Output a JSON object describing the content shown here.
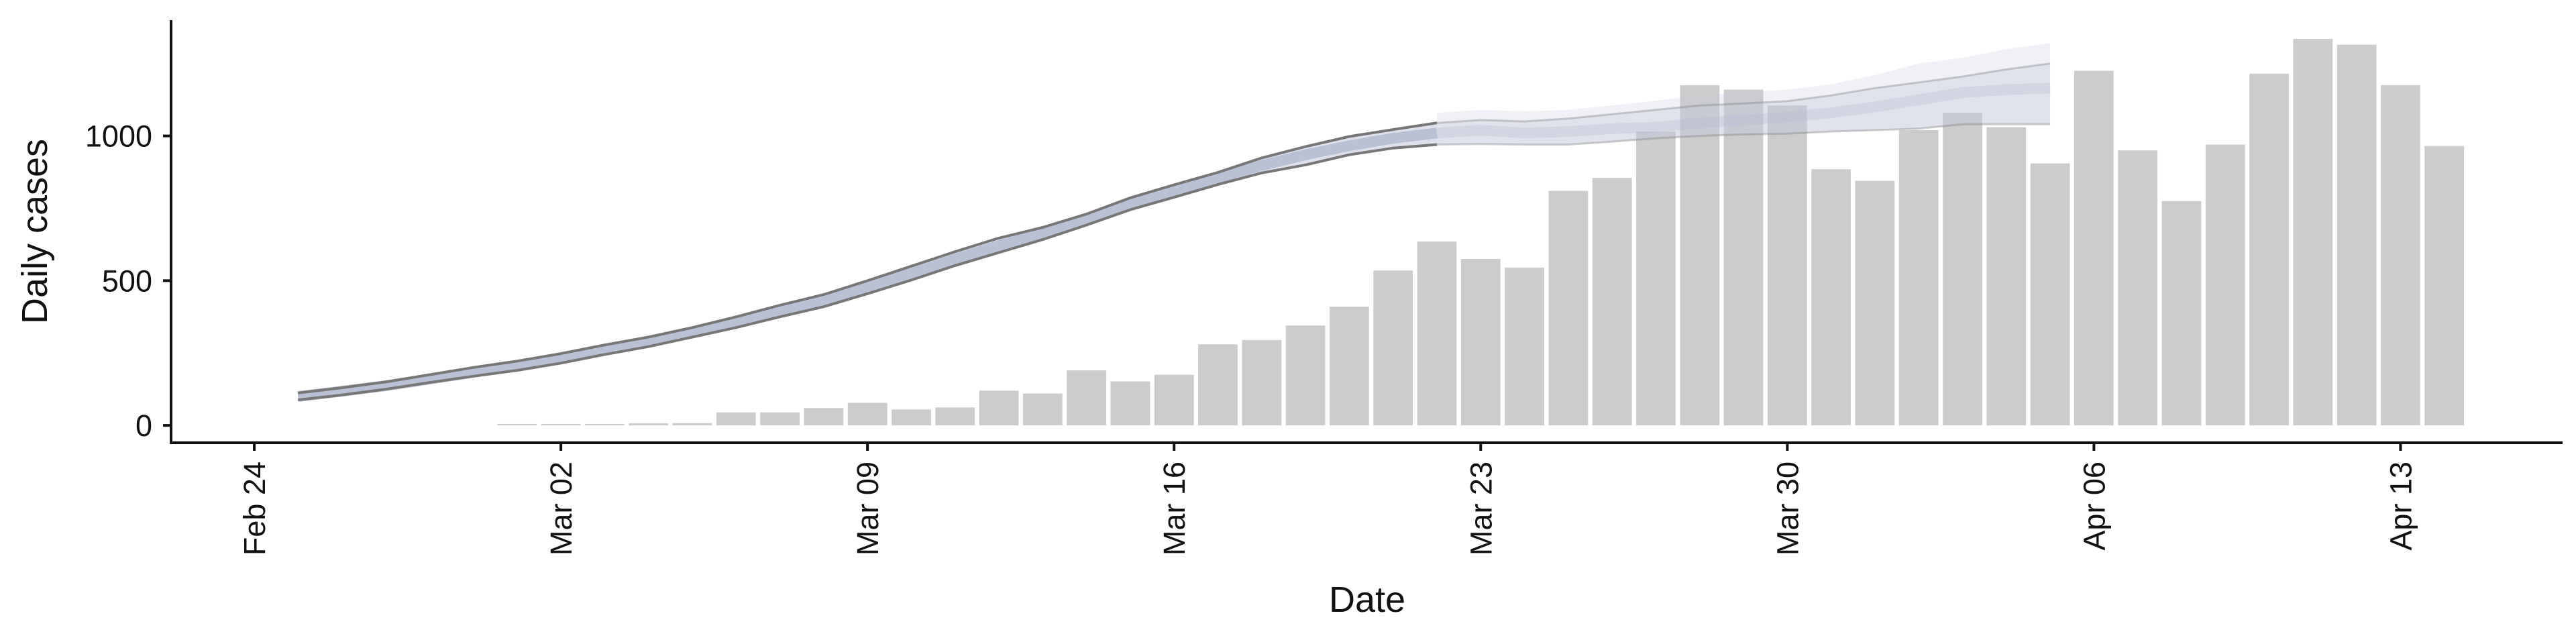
{
  "chart_data": {
    "type": "bar+line",
    "xlabel": "Date",
    "ylabel": "Daily cases",
    "x_ticks": [
      {
        "label": "Feb 24",
        "day": 0
      },
      {
        "label": "Mar 02",
        "day": 7
      },
      {
        "label": "Mar 09",
        "day": 14
      },
      {
        "label": "Mar 16",
        "day": 21
      },
      {
        "label": "Mar 23",
        "day": 28
      },
      {
        "label": "Mar 30",
        "day": 35
      },
      {
        "label": "Apr 06",
        "day": 42
      },
      {
        "label": "Apr 13",
        "day": 49
      }
    ],
    "y_ticks": [
      {
        "label": "0",
        "value": 0
      },
      {
        "label": "500",
        "value": 500
      },
      {
        "label": "1000",
        "value": 1000
      }
    ],
    "xlim_days": [
      -1.9,
      52.7
    ],
    "ylim": [
      -60,
      1400
    ],
    "bars": {
      "first_day": 6,
      "values": [
        5,
        5,
        5,
        7,
        8,
        45,
        45,
        60,
        78,
        55,
        62,
        120,
        110,
        190,
        152,
        175,
        280,
        295,
        345,
        410,
        535,
        635,
        575,
        545,
        810,
        855,
        1015,
        1175,
        1160,
        1105,
        885,
        845,
        1020,
        1080,
        1030,
        905,
        1225,
        950,
        775,
        970,
        1215,
        1335,
        1315,
        1175,
        965
      ],
      "color": "#cccccc"
    },
    "estimate": {
      "first_day": 1,
      "median": [
        100,
        118,
        137,
        160,
        183,
        205,
        230,
        260,
        288,
        320,
        355,
        395,
        430,
        478,
        525,
        574,
        621,
        662,
        711,
        765,
        810,
        855,
        898,
        935,
        966,
        992,
        1010,
        1020,
        1010,
        1015,
        1025,
        1030,
        1045,
        1055,
        1065,
        1080,
        1100,
        1125,
        1150,
        1160,
        1165
      ],
      "ci_lower": [
        88,
        105,
        125,
        148,
        170,
        190,
        215,
        245,
        272,
        305,
        338,
        375,
        410,
        455,
        502,
        552,
        597,
        642,
        692,
        745,
        788,
        832,
        872,
        900,
        935,
        958,
        970,
        972,
        970,
        970,
        980,
        992,
        1000,
        1005,
        1008,
        1015,
        1020,
        1025,
        1040,
        1040,
        1040
      ],
      "ci_upper": [
        112,
        130,
        150,
        175,
        200,
        222,
        248,
        278,
        305,
        338,
        375,
        415,
        452,
        500,
        550,
        600,
        647,
        684,
        730,
        786,
        831,
        874,
        924,
        963,
        998,
        1022,
        1045,
        1055,
        1050,
        1060,
        1075,
        1090,
        1105,
        1112,
        1120,
        1140,
        1165,
        1185,
        1205,
        1230,
        1250
      ],
      "outer_upper": [
        120,
        138,
        158,
        185,
        210,
        235,
        262,
        295,
        325,
        358,
        395,
        437,
        474,
        522,
        573,
        624,
        672,
        710,
        755,
        810,
        852,
        896,
        948,
        990,
        1030,
        1058,
        1080,
        1090,
        1085,
        1090,
        1105,
        1122,
        1140,
        1150,
        1160,
        1178,
        1210,
        1250,
        1270,
        1300,
        1320
      ],
      "observed_days": 26,
      "band_color": "#c3c9da",
      "median_color": "#b7bed3",
      "bound_color": "#777777"
    }
  }
}
